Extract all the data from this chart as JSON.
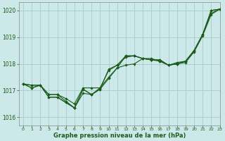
{
  "background_color": "#cce8e8",
  "grid_color": "#aacece",
  "line_color": "#1a5c1a",
  "title": "Graphe pression niveau de la mer (hPa)",
  "xlim": [
    -0.5,
    23
  ],
  "ylim": [
    1015.7,
    1020.3
  ],
  "yticks": [
    1016,
    1017,
    1018,
    1019,
    1020
  ],
  "xticks": [
    0,
    1,
    2,
    3,
    4,
    5,
    6,
    7,
    8,
    9,
    10,
    11,
    12,
    13,
    14,
    15,
    16,
    17,
    18,
    19,
    20,
    21,
    22,
    23
  ],
  "series": [
    [
      1017.25,
      1017.2,
      1017.2,
      1016.85,
      1016.85,
      1016.7,
      1016.5,
      1017.1,
      1017.1,
      1017.1,
      1017.75,
      1017.95,
      1018.3,
      1018.3,
      1018.2,
      1018.15,
      1018.15,
      1017.95,
      1018.05,
      1018.1,
      1018.5,
      1019.1,
      1020.0,
      1020.05
    ],
    [
      1017.25,
      1017.2,
      1017.2,
      1016.85,
      1016.85,
      1016.6,
      1016.35,
      1016.9,
      1016.85,
      1017.1,
      1017.5,
      1017.85,
      1018.3,
      1018.3,
      1018.2,
      1018.15,
      1018.15,
      1017.95,
      1018.0,
      1018.1,
      1018.5,
      1019.1,
      1020.0,
      1020.05
    ],
    [
      1017.25,
      1017.1,
      1017.2,
      1016.75,
      1016.75,
      1016.55,
      1016.35,
      1017.05,
      1016.85,
      1017.05,
      1017.8,
      1017.95,
      1018.25,
      1018.3,
      1018.2,
      1018.15,
      1018.1,
      1017.95,
      1018.0,
      1018.1,
      1018.5,
      1019.1,
      1019.9,
      1020.05
    ],
    [
      1017.25,
      1017.1,
      1017.2,
      1016.75,
      1016.75,
      1016.55,
      1016.35,
      1017.05,
      1016.85,
      1017.05,
      1017.45,
      1017.85,
      1017.95,
      1018.0,
      1018.2,
      1018.2,
      1018.1,
      1017.95,
      1018.0,
      1018.05,
      1018.45,
      1019.05,
      1019.85,
      1020.05
    ]
  ]
}
